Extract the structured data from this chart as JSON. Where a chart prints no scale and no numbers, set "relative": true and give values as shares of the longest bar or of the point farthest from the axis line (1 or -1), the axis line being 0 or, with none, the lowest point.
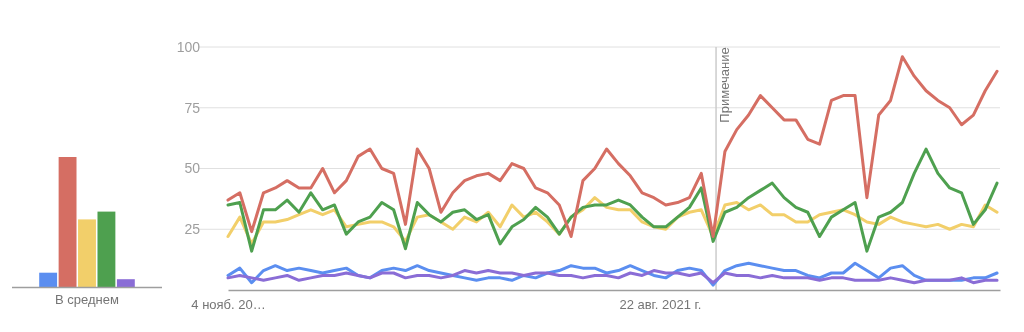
{
  "chart_data": [
    {
      "type": "bar",
      "relative": true,
      "categories": [
        "В среднем"
      ],
      "series": [
        {
          "color": "#5b8ef0",
          "values": [
            0.11
          ]
        },
        {
          "color": "#d56e63",
          "values": [
            1
          ]
        },
        {
          "color": "#f2cf6a",
          "values": [
            0.52
          ]
        },
        {
          "color": "#4ea04f",
          "values": [
            0.58
          ]
        },
        {
          "color": "#8a6dd6",
          "values": [
            0.06
          ]
        }
      ]
    },
    {
      "type": "line",
      "ylim": [
        0,
        100
      ],
      "yticks": [
        25,
        50,
        75,
        100
      ],
      "grid": "y",
      "xlim": [
        "2018-11-04",
        "2023-11-05"
      ],
      "xticks": [
        {
          "value": "2018-11-04",
          "label": "4 нояб. 20…"
        },
        {
          "value": "2021-08-22",
          "label": "22 авг. 2021 г."
        }
      ],
      "tick_labels": "x_and_y",
      "ref_lines": [
        {
          "axis": "x",
          "value": "2022-01-02",
          "label": "Примечание",
          "color": "#cccccc"
        }
      ],
      "x": [
        "2018-11-04",
        "2018-12-02",
        "2018-12-30",
        "2019-01-27",
        "2019-02-24",
        "2019-03-24",
        "2019-04-21",
        "2019-05-19",
        "2019-06-16",
        "2019-07-14",
        "2019-08-11",
        "2019-09-08",
        "2019-10-06",
        "2019-11-03",
        "2019-12-01",
        "2019-12-29",
        "2020-01-26",
        "2020-02-23",
        "2020-03-22",
        "2020-04-19",
        "2020-05-17",
        "2020-06-14",
        "2020-07-12",
        "2020-08-09",
        "2020-09-06",
        "2020-10-04",
        "2020-11-01",
        "2020-11-29",
        "2020-12-27",
        "2021-01-24",
        "2021-02-21",
        "2021-03-21",
        "2021-04-18",
        "2021-05-16",
        "2021-06-13",
        "2021-07-11",
        "2021-08-08",
        "2021-09-05",
        "2021-10-03",
        "2021-10-31",
        "2021-11-28",
        "2021-12-26",
        "2022-01-23",
        "2022-02-20",
        "2022-03-20",
        "2022-04-17",
        "2022-05-15",
        "2022-06-12",
        "2022-07-10",
        "2022-08-07",
        "2022-09-04",
        "2022-10-02",
        "2022-10-30",
        "2022-11-27",
        "2022-12-25",
        "2023-01-22",
        "2023-02-19",
        "2023-03-19",
        "2023-04-16",
        "2023-05-14",
        "2023-06-11",
        "2023-07-09",
        "2023-08-06",
        "2023-09-03",
        "2023-10-01",
        "2023-10-29"
      ],
      "series": [
        {
          "color": "#5b8ef0",
          "values": [
            6,
            9,
            3,
            8,
            10,
            8,
            9,
            8,
            7,
            8,
            9,
            6,
            5,
            8,
            9,
            8,
            10,
            8,
            7,
            6,
            5,
            4,
            5,
            5,
            4,
            6,
            5,
            7,
            8,
            10,
            9,
            9,
            7,
            8,
            10,
            8,
            6,
            5,
            8,
            9,
            8,
            2,
            8,
            10,
            11,
            10,
            9,
            8,
            8,
            6,
            5,
            7,
            7,
            11,
            8,
            5,
            9,
            10,
            6,
            4,
            4,
            4,
            4,
            5,
            5,
            7
          ]
        },
        {
          "color": "#8a6dd6",
          "values": [
            5,
            6,
            5,
            4,
            5,
            6,
            4,
            5,
            6,
            6,
            7,
            6,
            5,
            7,
            7,
            5,
            6,
            6,
            5,
            6,
            8,
            7,
            8,
            7,
            7,
            6,
            7,
            7,
            6,
            6,
            5,
            6,
            6,
            5,
            7,
            6,
            8,
            7,
            7,
            6,
            7,
            3,
            7,
            6,
            6,
            5,
            6,
            5,
            5,
            5,
            4,
            5,
            5,
            4,
            4,
            4,
            5,
            4,
            3,
            4,
            4,
            4,
            5,
            3,
            4,
            4
          ]
        },
        {
          "color": "#f2cf6a",
          "values": [
            22,
            30,
            19,
            28,
            28,
            29,
            31,
            33,
            31,
            33,
            26,
            27,
            28,
            28,
            26,
            20,
            30,
            31,
            28,
            25,
            30,
            28,
            32,
            26,
            35,
            30,
            32,
            28,
            23,
            30,
            33,
            38,
            34,
            33,
            33,
            28,
            26,
            25,
            30,
            32,
            33,
            22,
            35,
            36,
            33,
            35,
            31,
            31,
            28,
            28,
            31,
            32,
            33,
            31,
            28,
            27,
            30,
            28,
            27,
            26,
            27,
            25,
            27,
            26,
            35,
            32
          ]
        },
        {
          "color": "#4ea04f",
          "values": [
            35,
            36,
            16,
            33,
            33,
            37,
            32,
            40,
            33,
            35,
            23,
            28,
            30,
            36,
            33,
            17,
            36,
            31,
            28,
            32,
            33,
            29,
            31,
            19,
            26,
            29,
            34,
            30,
            23,
            30,
            34,
            35,
            35,
            37,
            35,
            30,
            26,
            26,
            30,
            34,
            42,
            20,
            32,
            34,
            38,
            41,
            44,
            38,
            34,
            32,
            22,
            30,
            33,
            36,
            16,
            30,
            32,
            36,
            48,
            58,
            48,
            42,
            40,
            27,
            33,
            44
          ]
        },
        {
          "color": "#d56e63",
          "values": [
            37,
            40,
            24,
            40,
            42,
            45,
            42,
            42,
            50,
            40,
            45,
            55,
            58,
            50,
            48,
            27,
            58,
            50,
            32,
            40,
            45,
            47,
            48,
            45,
            52,
            50,
            42,
            40,
            35,
            22,
            45,
            50,
            58,
            52,
            47,
            40,
            38,
            35,
            36,
            38,
            48,
            22,
            57,
            66,
            72,
            80,
            75,
            70,
            70,
            62,
            60,
            78,
            80,
            80,
            38,
            72,
            78,
            96,
            88,
            82,
            78,
            75,
            68,
            72,
            82,
            90
          ]
        }
      ]
    }
  ]
}
